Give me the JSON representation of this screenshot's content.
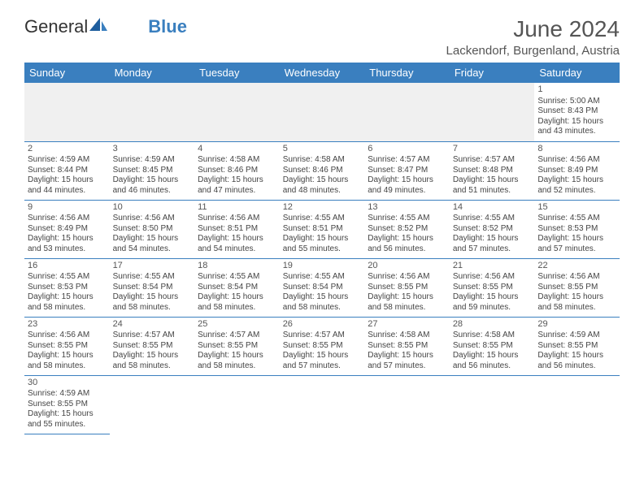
{
  "logo": {
    "text_a": "General",
    "text_b": "Blue"
  },
  "title": "June 2024",
  "location": "Lackendorf, Burgenland, Austria",
  "header_color": "#3a7fbf",
  "header_text_color": "#ffffff",
  "grid_line_color": "#3a7fbf",
  "background_color": "#ffffff",
  "text_color": "#444444",
  "title_color": "#555555",
  "font_family": "Arial, Helvetica, sans-serif",
  "day_headers": [
    "Sunday",
    "Monday",
    "Tuesday",
    "Wednesday",
    "Thursday",
    "Friday",
    "Saturday"
  ],
  "weeks": [
    [
      null,
      null,
      null,
      null,
      null,
      null,
      {
        "n": "1",
        "sunrise": "5:00 AM",
        "sunset": "8:43 PM",
        "dl_h": "15",
        "dl_m": "43"
      }
    ],
    [
      {
        "n": "2",
        "sunrise": "4:59 AM",
        "sunset": "8:44 PM",
        "dl_h": "15",
        "dl_m": "44"
      },
      {
        "n": "3",
        "sunrise": "4:59 AM",
        "sunset": "8:45 PM",
        "dl_h": "15",
        "dl_m": "46"
      },
      {
        "n": "4",
        "sunrise": "4:58 AM",
        "sunset": "8:46 PM",
        "dl_h": "15",
        "dl_m": "47"
      },
      {
        "n": "5",
        "sunrise": "4:58 AM",
        "sunset": "8:46 PM",
        "dl_h": "15",
        "dl_m": "48"
      },
      {
        "n": "6",
        "sunrise": "4:57 AM",
        "sunset": "8:47 PM",
        "dl_h": "15",
        "dl_m": "49"
      },
      {
        "n": "7",
        "sunrise": "4:57 AM",
        "sunset": "8:48 PM",
        "dl_h": "15",
        "dl_m": "51"
      },
      {
        "n": "8",
        "sunrise": "4:56 AM",
        "sunset": "8:49 PM",
        "dl_h": "15",
        "dl_m": "52"
      }
    ],
    [
      {
        "n": "9",
        "sunrise": "4:56 AM",
        "sunset": "8:49 PM",
        "dl_h": "15",
        "dl_m": "53"
      },
      {
        "n": "10",
        "sunrise": "4:56 AM",
        "sunset": "8:50 PM",
        "dl_h": "15",
        "dl_m": "54"
      },
      {
        "n": "11",
        "sunrise": "4:56 AM",
        "sunset": "8:51 PM",
        "dl_h": "15",
        "dl_m": "54"
      },
      {
        "n": "12",
        "sunrise": "4:55 AM",
        "sunset": "8:51 PM",
        "dl_h": "15",
        "dl_m": "55"
      },
      {
        "n": "13",
        "sunrise": "4:55 AM",
        "sunset": "8:52 PM",
        "dl_h": "15",
        "dl_m": "56"
      },
      {
        "n": "14",
        "sunrise": "4:55 AM",
        "sunset": "8:52 PM",
        "dl_h": "15",
        "dl_m": "57"
      },
      {
        "n": "15",
        "sunrise": "4:55 AM",
        "sunset": "8:53 PM",
        "dl_h": "15",
        "dl_m": "57"
      }
    ],
    [
      {
        "n": "16",
        "sunrise": "4:55 AM",
        "sunset": "8:53 PM",
        "dl_h": "15",
        "dl_m": "58"
      },
      {
        "n": "17",
        "sunrise": "4:55 AM",
        "sunset": "8:54 PM",
        "dl_h": "15",
        "dl_m": "58"
      },
      {
        "n": "18",
        "sunrise": "4:55 AM",
        "sunset": "8:54 PM",
        "dl_h": "15",
        "dl_m": "58"
      },
      {
        "n": "19",
        "sunrise": "4:55 AM",
        "sunset": "8:54 PM",
        "dl_h": "15",
        "dl_m": "58"
      },
      {
        "n": "20",
        "sunrise": "4:56 AM",
        "sunset": "8:55 PM",
        "dl_h": "15",
        "dl_m": "58"
      },
      {
        "n": "21",
        "sunrise": "4:56 AM",
        "sunset": "8:55 PM",
        "dl_h": "15",
        "dl_m": "59"
      },
      {
        "n": "22",
        "sunrise": "4:56 AM",
        "sunset": "8:55 PM",
        "dl_h": "15",
        "dl_m": "58"
      }
    ],
    [
      {
        "n": "23",
        "sunrise": "4:56 AM",
        "sunset": "8:55 PM",
        "dl_h": "15",
        "dl_m": "58"
      },
      {
        "n": "24",
        "sunrise": "4:57 AM",
        "sunset": "8:55 PM",
        "dl_h": "15",
        "dl_m": "58"
      },
      {
        "n": "25",
        "sunrise": "4:57 AM",
        "sunset": "8:55 PM",
        "dl_h": "15",
        "dl_m": "58"
      },
      {
        "n": "26",
        "sunrise": "4:57 AM",
        "sunset": "8:55 PM",
        "dl_h": "15",
        "dl_m": "57"
      },
      {
        "n": "27",
        "sunrise": "4:58 AM",
        "sunset": "8:55 PM",
        "dl_h": "15",
        "dl_m": "57"
      },
      {
        "n": "28",
        "sunrise": "4:58 AM",
        "sunset": "8:55 PM",
        "dl_h": "15",
        "dl_m": "56"
      },
      {
        "n": "29",
        "sunrise": "4:59 AM",
        "sunset": "8:55 PM",
        "dl_h": "15",
        "dl_m": "56"
      }
    ],
    [
      {
        "n": "30",
        "sunrise": "4:59 AM",
        "sunset": "8:55 PM",
        "dl_h": "15",
        "dl_m": "55"
      },
      null,
      null,
      null,
      null,
      null,
      null
    ]
  ],
  "labels": {
    "sunrise": "Sunrise:",
    "sunset": "Sunset:",
    "daylight_a": "Daylight:",
    "hours": "hours",
    "and": "and",
    "minutes": "minutes."
  }
}
